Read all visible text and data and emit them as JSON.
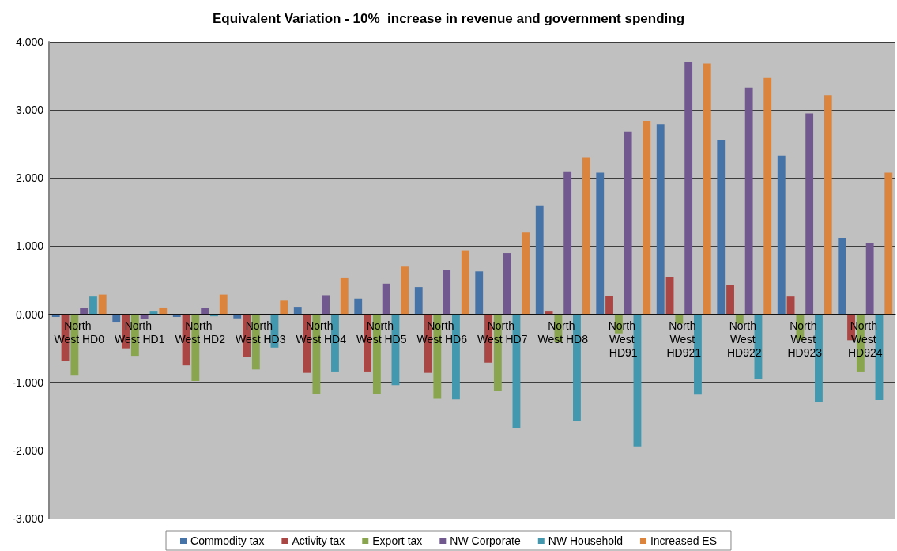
{
  "chart_data": {
    "type": "bar",
    "title": "Equivalent Variation - 10%  increase in revenue and government spending",
    "categories": [
      "North West HD0",
      "North West HD1",
      "North West HD2",
      "North West HD3",
      "North West HD4",
      "North West HD5",
      "North West HD6",
      "North West HD7",
      "North West HD8",
      "North West HD91",
      "North West HD921",
      "North West HD922",
      "North West HD923",
      "North West HD924"
    ],
    "series": [
      {
        "name": "Commodity tax",
        "color": "#4572a7",
        "values": [
          -0.04,
          -0.11,
          -0.04,
          -0.06,
          0.11,
          0.23,
          0.4,
          0.63,
          1.6,
          2.08,
          2.79,
          2.56,
          2.33,
          1.12
        ]
      },
      {
        "name": "Activity tax",
        "color": "#aa4643",
        "values": [
          -0.69,
          -0.5,
          -0.75,
          -0.63,
          -0.86,
          -0.84,
          -0.86,
          -0.71,
          0.04,
          0.27,
          0.55,
          0.43,
          0.26,
          -0.38
        ]
      },
      {
        "name": "Export tax",
        "color": "#89a54e",
        "values": [
          -0.89,
          -0.61,
          -0.98,
          -0.81,
          -1.17,
          -1.17,
          -1.24,
          -1.12,
          -0.41,
          -0.28,
          -0.14,
          -0.14,
          -0.38,
          -0.84
        ]
      },
      {
        "name": "NW Corporate",
        "color": "#71588f",
        "values": [
          0.09,
          -0.07,
          0.1,
          0,
          0.28,
          0.45,
          0.65,
          0.9,
          2.1,
          2.68,
          3.7,
          3.33,
          2.95,
          1.04
        ]
      },
      {
        "name": "NW Household",
        "color": "#4198af",
        "values": [
          0.26,
          0.04,
          -0.03,
          -0.49,
          -0.84,
          -1.04,
          -1.25,
          -1.67,
          -1.57,
          -1.94,
          -1.18,
          -0.95,
          -1.29,
          -1.26
        ]
      },
      {
        "name": "Increased ES",
        "color": "#db843d",
        "values": [
          0.29,
          0.1,
          0.29,
          0.2,
          0.53,
          0.7,
          0.94,
          1.2,
          2.3,
          2.84,
          3.68,
          3.47,
          3.22,
          2.08
        ]
      }
    ],
    "ylim": [
      -3,
      4
    ],
    "yticks": [
      {
        "value": -3,
        "label": "-3.000"
      },
      {
        "value": -2,
        "label": "-2.000"
      },
      {
        "value": -1,
        "label": "-1.000"
      },
      {
        "value": 0,
        "label": "0.000"
      },
      {
        "value": 1,
        "label": "1.000"
      },
      {
        "value": 2,
        "label": "2.000"
      },
      {
        "value": 3,
        "label": "3.000"
      },
      {
        "value": 4,
        "label": "4.000"
      }
    ],
    "grid": "y",
    "legend": "bottom"
  }
}
